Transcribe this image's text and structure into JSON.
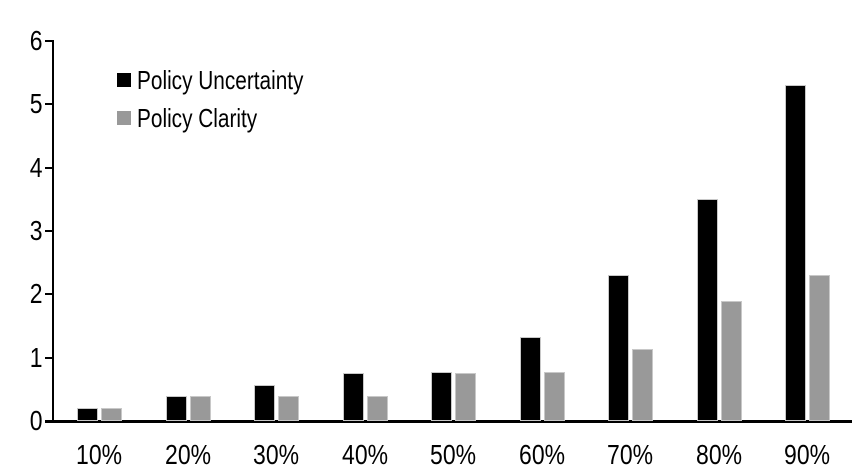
{
  "chart_data": {
    "type": "bar",
    "title": "",
    "categories": [
      "10%",
      "20%",
      "30%",
      "40%",
      "50%",
      "60%",
      "70%",
      "80%",
      "90%"
    ],
    "series": [
      {
        "name": "Policy Uncertainty",
        "color": "#000000",
        "values": [
          0.2,
          0.4,
          0.57,
          0.76,
          0.78,
          1.33,
          2.3,
          3.5,
          5.3
        ]
      },
      {
        "name": "Policy Clarity",
        "color": "#999999",
        "values": [
          0.2,
          0.39,
          0.39,
          0.39,
          0.76,
          0.77,
          1.13,
          1.9,
          2.3
        ]
      }
    ],
    "xlabel": "",
    "ylabel": "",
    "ylim": [
      0,
      6
    ],
    "yticks": [
      0,
      1,
      2,
      3,
      4,
      5,
      6
    ],
    "grid": false,
    "legend_position": "top-left-inside"
  },
  "colors": {
    "background": "#ffffff",
    "axis": "#000000",
    "text": "#000000",
    "bar_border": "#c8c8c8"
  }
}
